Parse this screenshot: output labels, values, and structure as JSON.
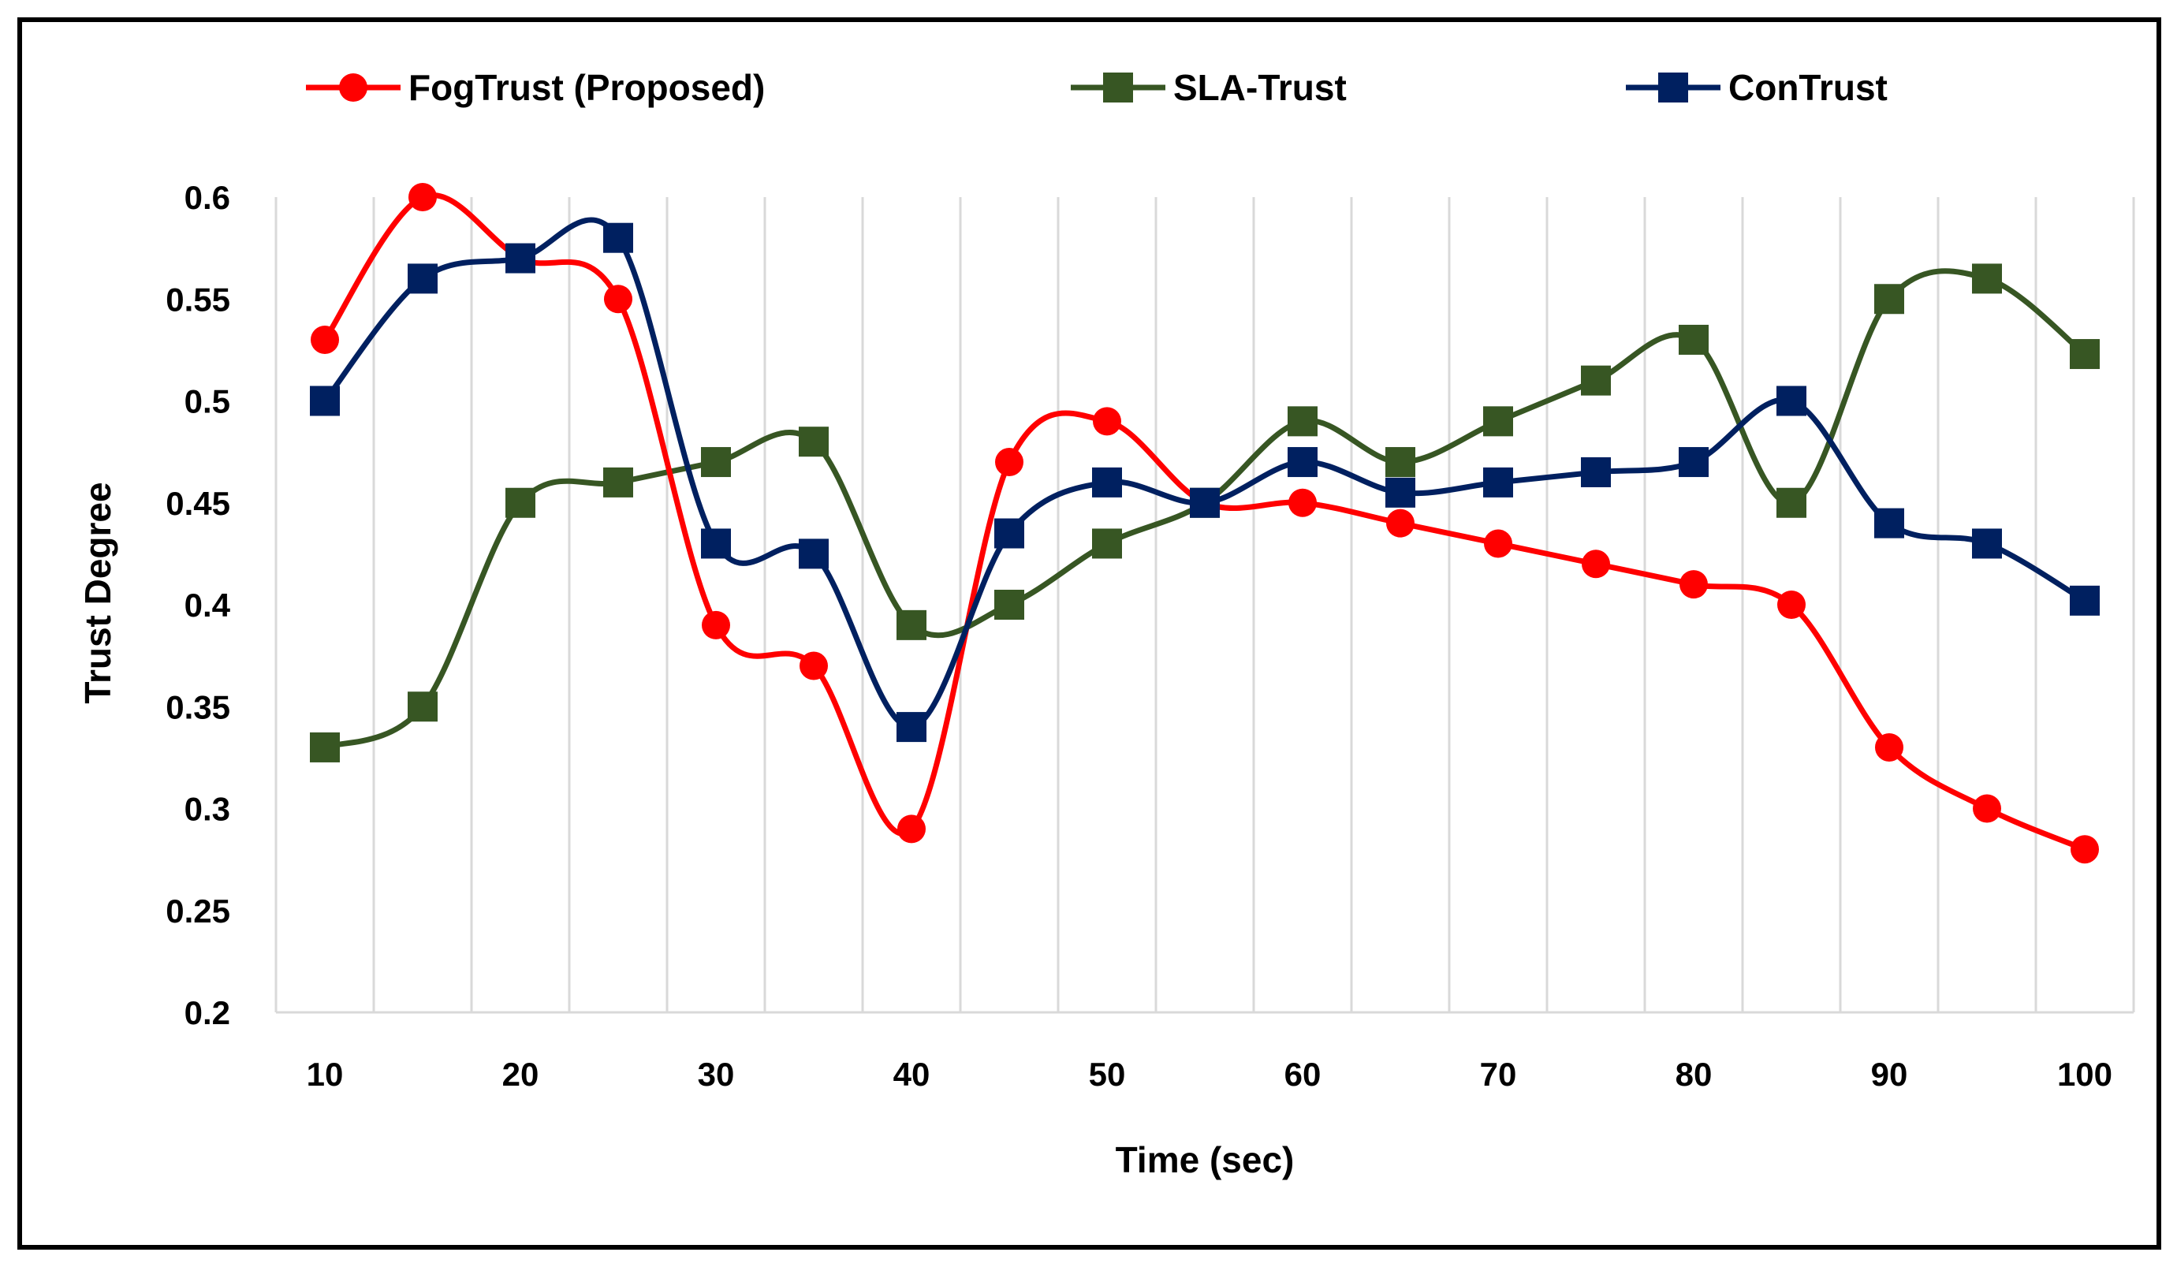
{
  "chart_data": {
    "type": "line",
    "title": "",
    "xlabel": "Time (sec)",
    "ylabel": "Trust Degree",
    "x": [
      10,
      15,
      20,
      25,
      30,
      35,
      40,
      45,
      50,
      55,
      60,
      65,
      70,
      75,
      80,
      85,
      90,
      95,
      100
    ],
    "xticks": [
      10,
      20,
      30,
      40,
      50,
      60,
      70,
      80,
      90,
      100
    ],
    "xtick_labels": [
      "10",
      "20",
      "30",
      "40",
      "50",
      "60",
      "70",
      "80",
      "90",
      "100"
    ],
    "xlim": [
      7.5,
      102.5
    ],
    "ylim": [
      0.2,
      0.6
    ],
    "yticks": [
      0.2,
      0.25,
      0.3,
      0.35,
      0.4,
      0.45,
      0.5,
      0.55,
      0.6
    ],
    "ytick_labels": [
      "0.2",
      "0.25",
      "0.3",
      "0.35",
      "0.4",
      "0.45",
      "0.5",
      "0.55",
      "0.6"
    ],
    "grid": "vertical",
    "legend_position": "top",
    "series": [
      {
        "name": "FogTrust (Proposed)",
        "color": "#ff0000",
        "marker": "circle",
        "values": [
          0.53,
          0.6,
          0.57,
          0.55,
          0.39,
          0.37,
          0.29,
          0.47,
          0.49,
          0.45,
          0.45,
          0.44,
          0.43,
          0.42,
          0.41,
          0.4,
          0.33,
          0.3,
          0.28
        ]
      },
      {
        "name": "SLA-Trust",
        "color": "#375623",
        "marker": "square",
        "values": [
          0.33,
          0.35,
          0.45,
          0.46,
          0.47,
          0.48,
          0.39,
          0.4,
          0.43,
          0.45,
          0.49,
          0.47,
          0.49,
          0.51,
          0.53,
          0.45,
          0.55,
          0.56,
          0.523
        ]
      },
      {
        "name": "ConTrust",
        "color": "#002060",
        "marker": "square",
        "values": [
          0.5,
          0.56,
          0.57,
          0.58,
          0.43,
          0.425,
          0.34,
          0.435,
          0.46,
          0.45,
          0.47,
          0.455,
          0.46,
          0.465,
          0.47,
          0.5,
          0.44,
          0.43,
          0.402
        ]
      }
    ]
  }
}
